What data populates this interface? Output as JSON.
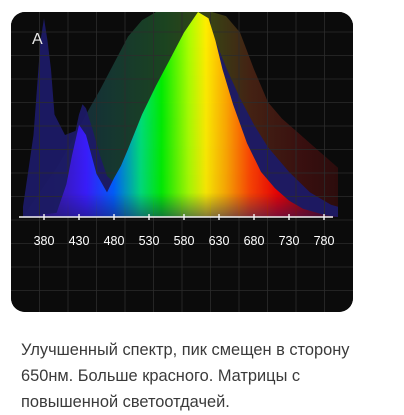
{
  "chart_data": {
    "type": "area",
    "panel_label": "A",
    "xlim": [
      350,
      800
    ],
    "ylim": [
      0,
      1
    ],
    "x_ticks": [
      380,
      430,
      480,
      530,
      580,
      630,
      680,
      730,
      780
    ],
    "x_tick_labels": [
      "380",
      "430",
      "480",
      "530",
      "580",
      "630",
      "680",
      "730",
      "780"
    ],
    "grid": true,
    "background_color": "#0b0b0b",
    "series": [
      {
        "x": [
          350,
          365,
          375,
          380,
          385,
          390,
          395,
          410,
          425,
          430,
          435,
          440,
          450,
          460,
          470,
          480,
          490,
          500,
          520,
          540,
          560,
          580,
          595,
          605,
          615,
          625,
          640,
          660,
          680,
          700,
          730,
          760,
          790,
          800
        ],
        "y": [
          0.05,
          0.4,
          0.86,
          0.97,
          0.86,
          0.72,
          0.5,
          0.4,
          0.42,
          0.5,
          0.55,
          0.53,
          0.42,
          0.3,
          0.2,
          0.17,
          0.15,
          0.2,
          0.35,
          0.55,
          0.72,
          0.86,
          0.94,
          0.96,
          0.93,
          0.86,
          0.73,
          0.58,
          0.45,
          0.34,
          0.22,
          0.12,
          0.06,
          0.05
        ]
      },
      {
        "x": [
          350,
          400,
          420,
          440,
          460,
          480,
          500,
          520,
          540,
          560,
          580,
          600,
          620,
          640,
          660,
          680,
          700,
          720,
          740,
          760,
          780,
          800
        ],
        "y": [
          0.0,
          0.25,
          0.37,
          0.5,
          0.62,
          0.75,
          0.88,
          0.96,
          1.0,
          1.0,
          1.0,
          1.0,
          1.0,
          0.98,
          0.9,
          0.72,
          0.56,
          0.48,
          0.42,
          0.36,
          0.3,
          0.24
        ]
      },
      {
        "x": [
          350,
          398,
          404,
          412,
          420,
          430,
          440,
          455,
          470,
          480,
          490,
          500,
          520,
          540,
          560,
          580,
          600,
          615,
          625,
          635,
          650,
          670,
          690,
          710,
          730,
          750,
          780,
          800
        ],
        "y": [
          0.0,
          0.02,
          0.08,
          0.16,
          0.3,
          0.45,
          0.4,
          0.21,
          0.12,
          0.19,
          0.25,
          0.33,
          0.5,
          0.64,
          0.77,
          0.9,
          1.0,
          0.97,
          0.86,
          0.72,
          0.55,
          0.36,
          0.22,
          0.14,
          0.08,
          0.04,
          0.01,
          0.0
        ]
      }
    ]
  },
  "caption": {
    "line1": "Улучшенный спектр, пик смещен в сторону",
    "line2": "650нм. Больше красного. Матрицы с",
    "line3": "повышенной светоотдачей."
  }
}
